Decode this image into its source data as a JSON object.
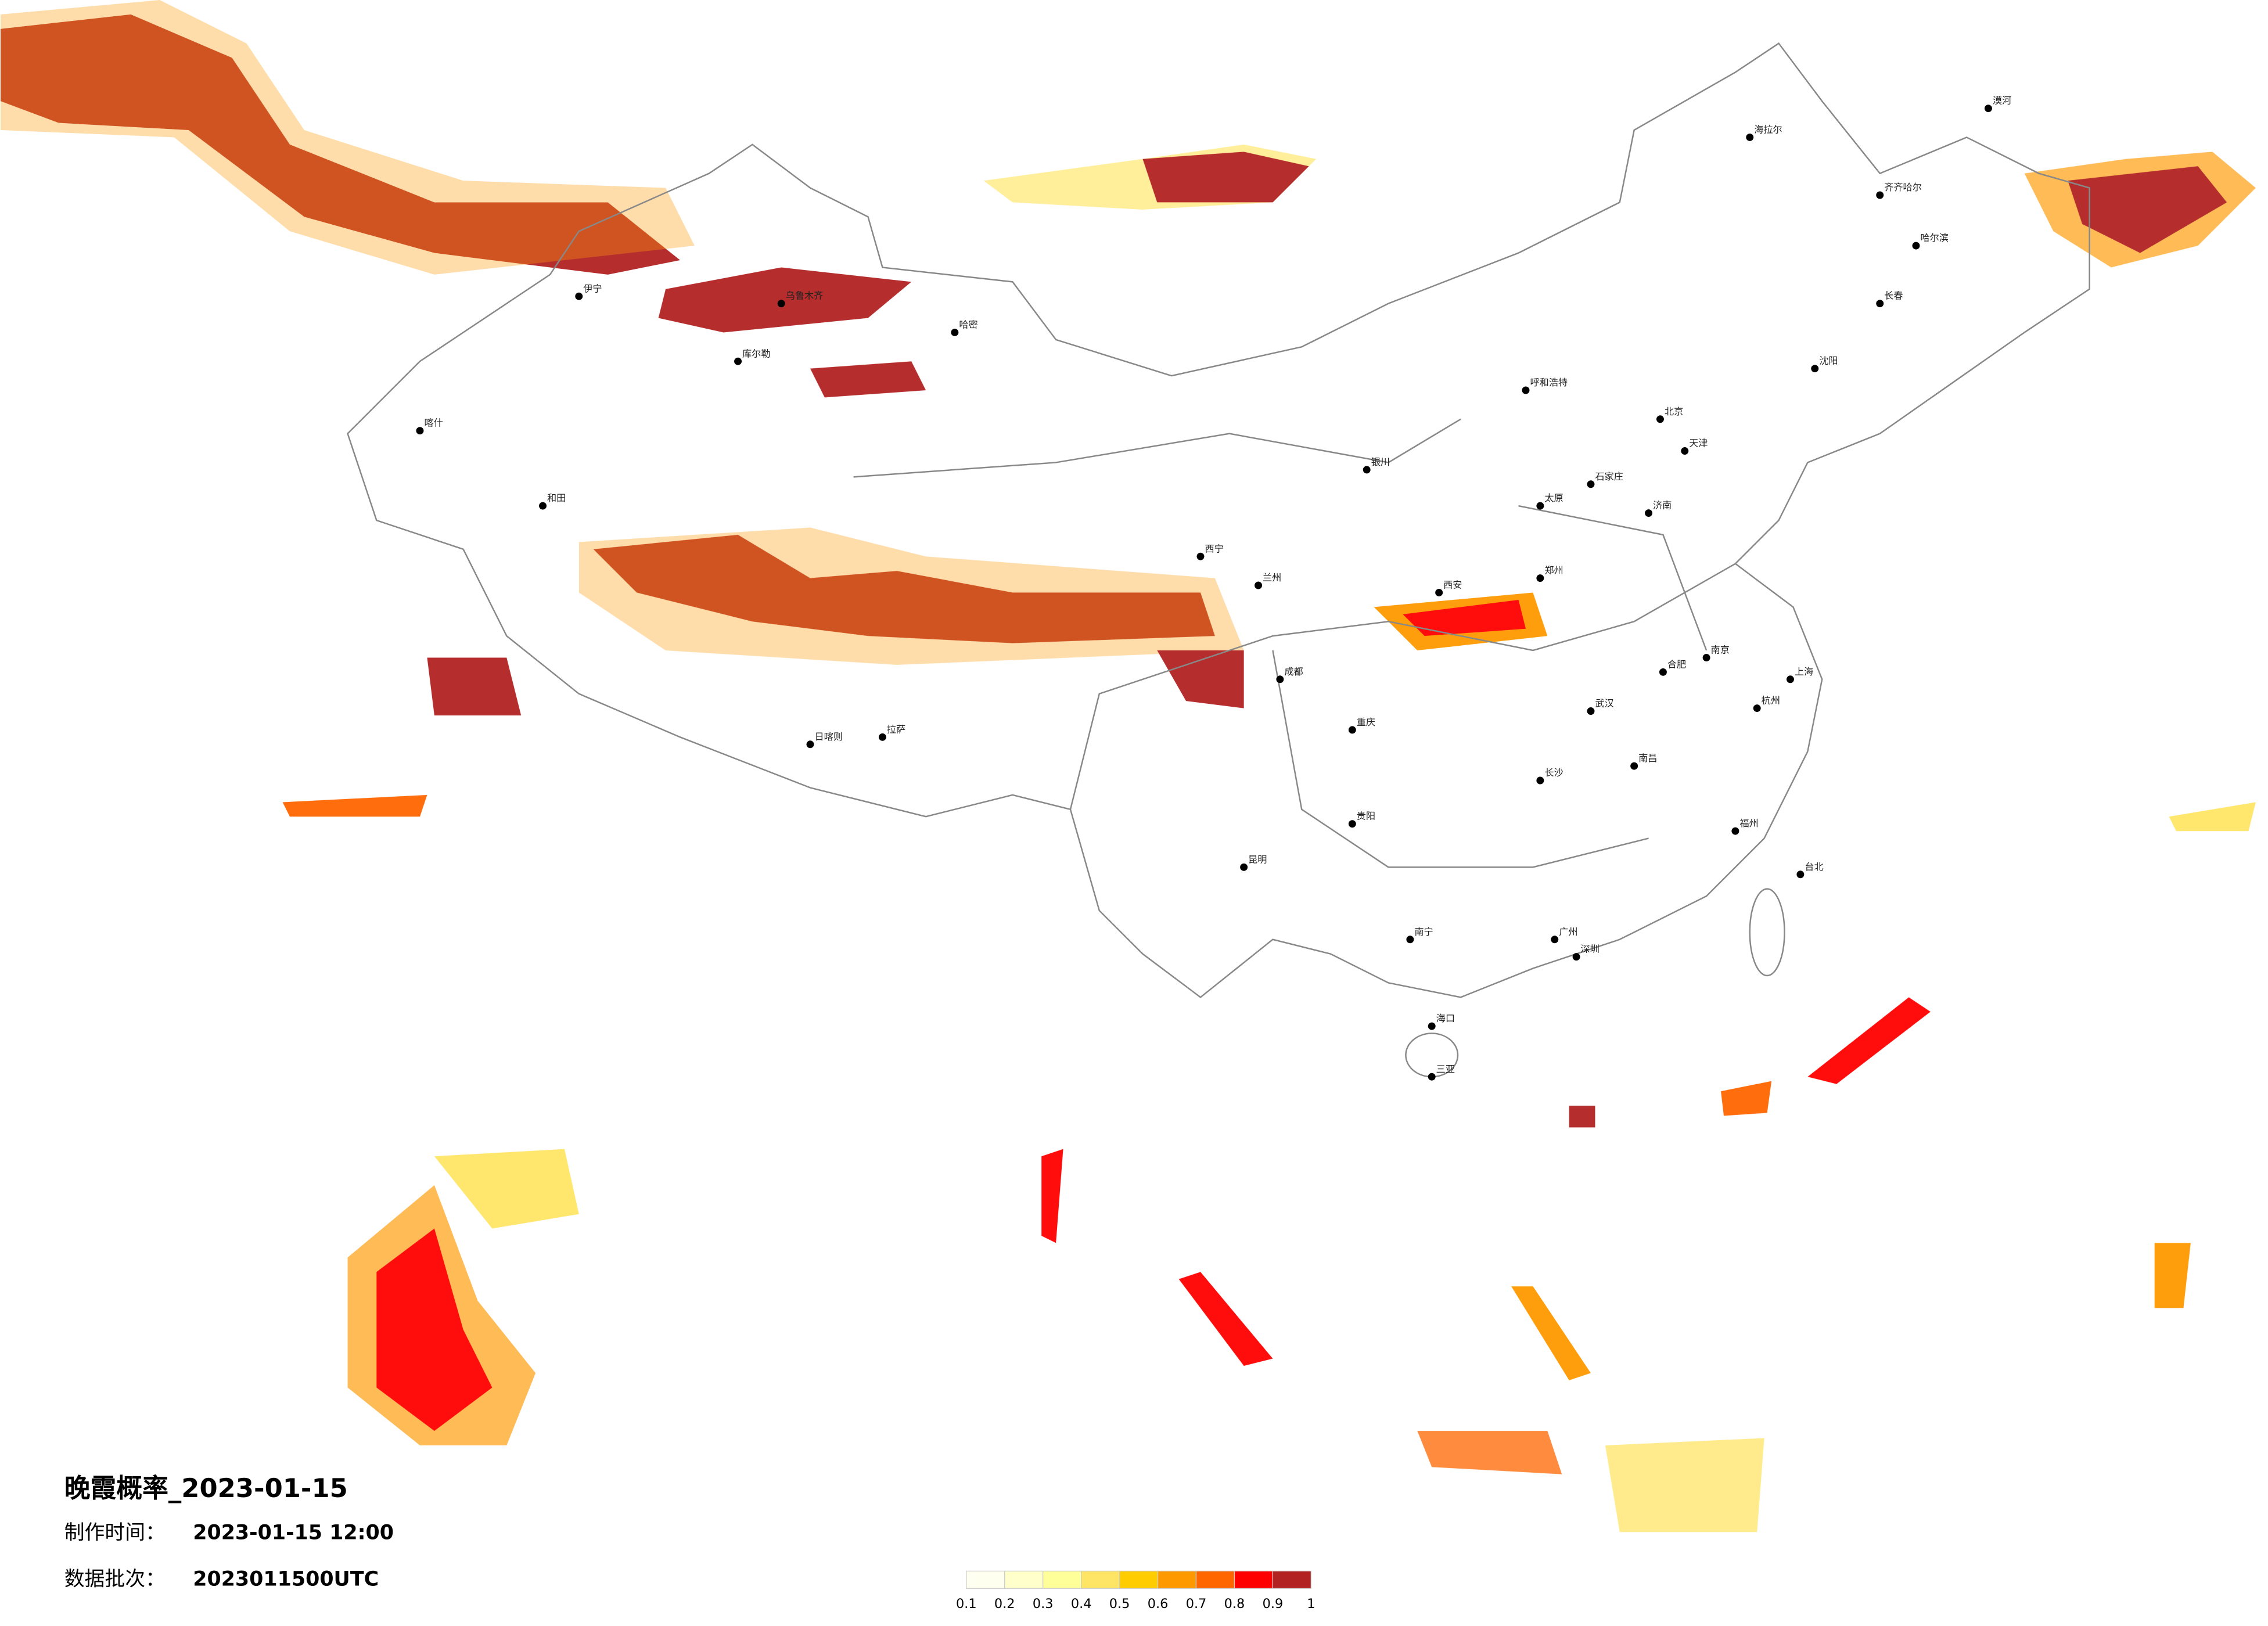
{
  "title": "晚霞概率_2023-01-15",
  "info": [
    {
      "label": "制作时间：",
      "value": "2023-01-15 12:00"
    },
    {
      "label": "数据批次：",
      "value": "2023011500UTC"
    }
  ],
  "legend": {
    "colors": [
      "#fffff0",
      "#ffffcc",
      "#ffff99",
      "#ffe566",
      "#ffcc00",
      "#ff9900",
      "#ff6600",
      "#ff0000",
      "#b22222"
    ],
    "ticks": [
      "0.1",
      "0.2",
      "0.3",
      "0.4",
      "0.5",
      "0.6",
      "0.7",
      "0.8",
      "0.9",
      "1"
    ]
  },
  "cities": [
    "北京",
    "天津",
    "上海",
    "广州",
    "深圳",
    "重庆",
    "成都",
    "武汉",
    "西安",
    "郑州",
    "长沙",
    "南昌",
    "杭州",
    "南京",
    "合肥",
    "济南",
    "石家庄",
    "太原",
    "呼和浩特",
    "沈阳",
    "长春",
    "哈尔滨",
    "兰州",
    "西宁",
    "银川",
    "乌鲁木齐",
    "拉萨",
    "昆明",
    "贵阳",
    "南宁",
    "海口",
    "福州",
    "台北",
    "喀什",
    "和田",
    "哈密",
    "伊宁",
    "库尔勒",
    "漠河",
    "海拉尔",
    "齐齐哈尔",
    "日喀则",
    "三亚"
  ]
}
